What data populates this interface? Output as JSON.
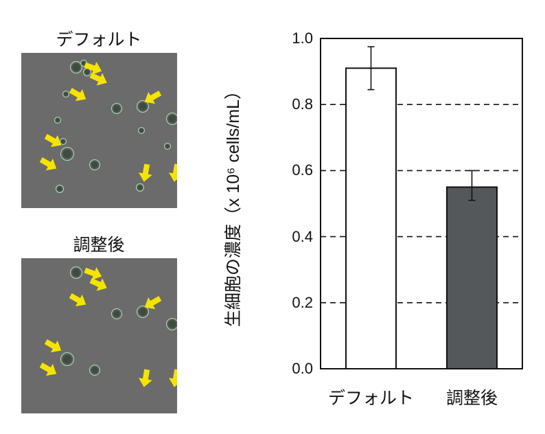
{
  "panels": [
    {
      "title": "デフォルト"
    },
    {
      "title": "調整後"
    }
  ],
  "chart_data": {
    "type": "bar",
    "title": "",
    "xlabel": "",
    "ylabel": "生細胞の濃度（x 10⁶ cells/mL）",
    "categories": [
      "デフォルト",
      "調整後"
    ],
    "values": [
      0.91,
      0.55
    ],
    "error": {
      "upper": [
        0.975,
        0.6
      ],
      "lower": [
        0.845,
        0.51
      ]
    },
    "ylim": [
      0.0,
      1.0
    ],
    "yticks": [
      "0.0",
      "0.2",
      "0.4",
      "0.6",
      "0.8",
      "1.0"
    ],
    "grid": "dashed horizontal at 0.2 intervals",
    "bar_colors": [
      "#ffffff",
      "#55585b"
    ],
    "legend": null
  }
}
